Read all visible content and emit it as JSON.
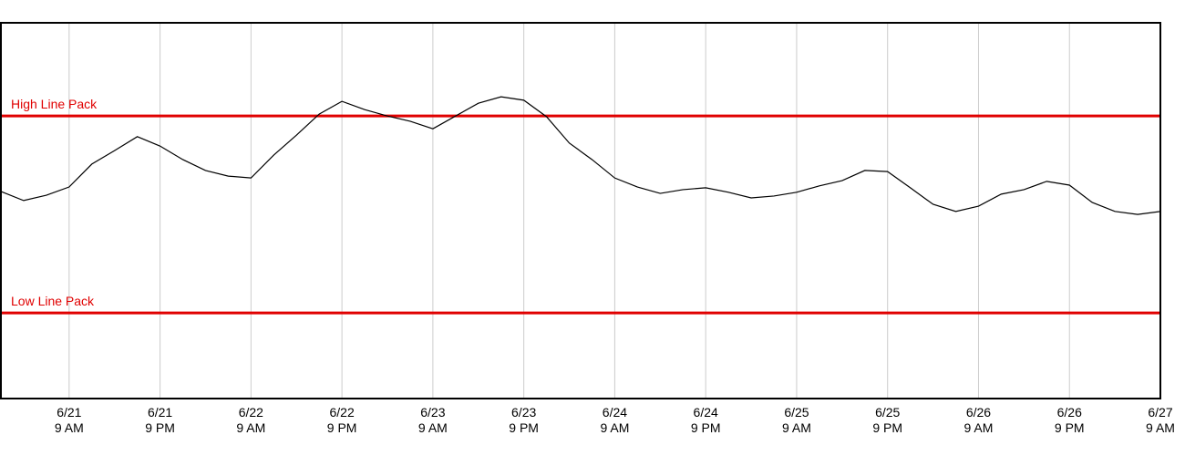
{
  "chart_data": {
    "type": "line",
    "x": [
      0,
      3,
      6,
      9,
      12,
      15,
      18,
      21,
      24,
      27,
      30,
      33,
      36,
      39,
      42,
      45,
      48,
      51,
      54,
      57,
      60,
      63,
      66,
      69,
      72,
      75,
      78,
      81,
      84,
      87,
      90,
      93,
      96,
      99,
      102,
      105,
      108,
      111,
      114,
      117,
      120,
      123,
      126,
      129,
      132,
      135,
      138,
      141,
      144,
      147,
      150,
      153
    ],
    "series": [
      {
        "color": "#000000",
        "values": [
          55.1,
          52.7,
          54.1,
          56.3,
          62.4,
          66.0,
          69.7,
          67.2,
          63.6,
          60.7,
          59.2,
          58.7,
          64.8,
          70.1,
          75.7,
          79.1,
          76.9,
          75.2,
          73.8,
          71.8,
          75.2,
          78.6,
          80.3,
          79.4,
          75.0,
          68.0,
          63.6,
          58.7,
          56.3,
          54.6,
          55.6,
          56.1,
          54.9,
          53.4,
          53.9,
          54.9,
          56.6,
          58.0,
          60.7,
          60.4,
          56.1,
          51.7,
          49.8,
          51.2,
          54.4,
          55.6,
          57.8,
          56.8,
          52.2,
          49.8,
          49.0,
          49.8
        ]
      }
    ],
    "xlim": [
      0,
      153
    ],
    "xticks": [
      {
        "value": 9,
        "label": [
          "6/21",
          "9 AM"
        ]
      },
      {
        "value": 21,
        "label": [
          "6/21",
          "9 PM"
        ]
      },
      {
        "value": 33,
        "label": [
          "6/22",
          "9 AM"
        ]
      },
      {
        "value": 45,
        "label": [
          "6/22",
          "9 PM"
        ]
      },
      {
        "value": 57,
        "label": [
          "6/23",
          "9 AM"
        ]
      },
      {
        "value": 69,
        "label": [
          "6/23",
          "9 PM"
        ]
      },
      {
        "value": 81,
        "label": [
          "6/24",
          "9 AM"
        ]
      },
      {
        "value": 93,
        "label": [
          "6/24",
          "9 PM"
        ]
      },
      {
        "value": 105,
        "label": [
          "6/25",
          "9 AM"
        ]
      },
      {
        "value": 117,
        "label": [
          "6/25",
          "9 PM"
        ]
      },
      {
        "value": 129,
        "label": [
          "6/26",
          "9 AM"
        ]
      },
      {
        "value": 141,
        "label": [
          "6/26",
          "9 PM"
        ]
      },
      {
        "value": 153,
        "label": [
          "6/27",
          "9 AM"
        ]
      }
    ],
    "ylim": [
      0,
      100
    ],
    "grid": true,
    "reference_lines": [
      {
        "label": "High Line Pack",
        "value": 75.2,
        "color": "#e00000"
      },
      {
        "label": "Low Line Pack",
        "value": 22.8,
        "color": "#e00000"
      }
    ]
  }
}
